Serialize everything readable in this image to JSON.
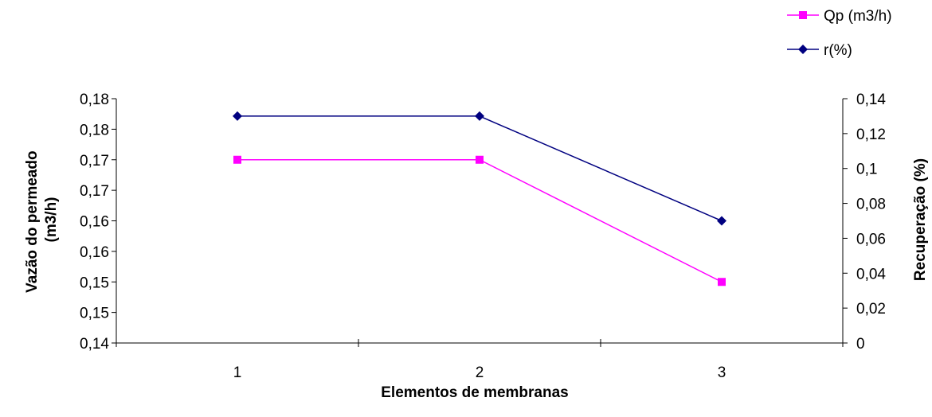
{
  "chart_data": {
    "type": "line",
    "title": "",
    "categories": [
      "1",
      "2",
      "3"
    ],
    "xlabel": "Elementos de membranas",
    "ylabel_left": "Vazão do permeado (m3/h)",
    "ylabel_right": "Recuperação (%)",
    "y_left": {
      "lim": [
        0.14,
        0.18
      ],
      "ticks": [
        0.14,
        0.145,
        0.15,
        0.155,
        0.16,
        0.165,
        0.17,
        0.175,
        0.18
      ],
      "tick_labels": [
        "0,14",
        "0,15",
        "0,15",
        "0,16",
        "0,16",
        "0,17",
        "0,17",
        "0,18",
        "0,18"
      ]
    },
    "y_right": {
      "lim": [
        0,
        0.14
      ],
      "ticks": [
        0,
        0.02,
        0.04,
        0.06,
        0.08,
        0.1,
        0.12,
        0.14
      ],
      "tick_labels": [
        "0",
        "0,02",
        "0,04",
        "0,06",
        "0,08",
        "0,1",
        "0,12",
        "0,14"
      ]
    },
    "series": [
      {
        "name": "Qp (m3/h)",
        "axis": "left",
        "color": "#ff00ff",
        "marker": "square",
        "values": [
          0.17,
          0.17,
          0.15
        ]
      },
      {
        "name": "r(%)",
        "axis": "right",
        "color": "#000080",
        "marker": "diamond",
        "values": [
          0.13,
          0.13,
          0.07
        ]
      }
    ],
    "legend_position": "top-right",
    "grid": false
  }
}
